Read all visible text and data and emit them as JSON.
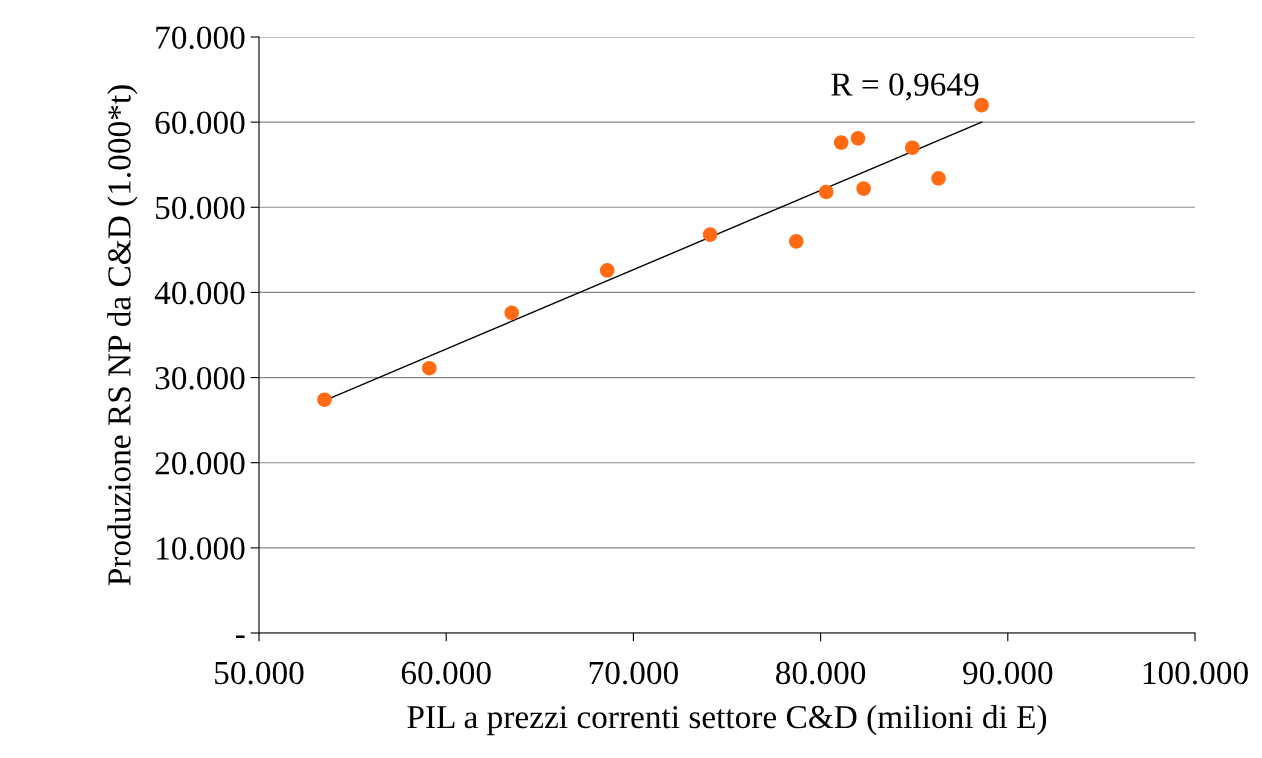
{
  "chart_data": {
    "type": "scatter",
    "xlabel": "PIL a prezzi correnti settore C&D (milioni di E)",
    "ylabel": "Produzione RS NP da C&D (1.000*t)",
    "xlim": [
      50,
      100
    ],
    "xticks": [
      {
        "value": 50,
        "label": "50.000"
      },
      {
        "value": 60,
        "label": "60.000"
      },
      {
        "value": 70,
        "label": "70.000"
      },
      {
        "value": 80,
        "label": "80.000"
      },
      {
        "value": 90,
        "label": "90.000"
      },
      {
        "value": 100,
        "label": "100.000"
      }
    ],
    "ylim": [
      0,
      70
    ],
    "yticks": [
      {
        "value": 0,
        "label": "-"
      },
      {
        "value": 10,
        "label": "10.000"
      },
      {
        "value": 20,
        "label": "20.000"
      },
      {
        "value": 30,
        "label": "30.000"
      },
      {
        "value": 40,
        "label": "40.000"
      },
      {
        "value": 50,
        "label": "50.000"
      },
      {
        "value": 60,
        "label": "60.000"
      },
      {
        "value": 70,
        "label": "70.000"
      }
    ],
    "grid": "y",
    "series": [
      {
        "marker": "circle",
        "color": "#ff6a13",
        "x": [
          53.5,
          59.1,
          63.5,
          68.6,
          74.1,
          78.7,
          80.3,
          81.1,
          82.0,
          82.3,
          84.9,
          86.3,
          88.6
        ],
        "values": [
          27.4,
          31.1,
          37.6,
          42.6,
          46.8,
          46.0,
          51.8,
          57.6,
          58.1,
          52.2,
          57.0,
          53.4,
          62.0
        ]
      },
      {
        "type": "line",
        "color": "#000000",
        "x": [
          53.5,
          88.6
        ],
        "values": [
          27.3,
          60.0
        ]
      }
    ],
    "annotations": [
      "R = 0,9649"
    ]
  }
}
